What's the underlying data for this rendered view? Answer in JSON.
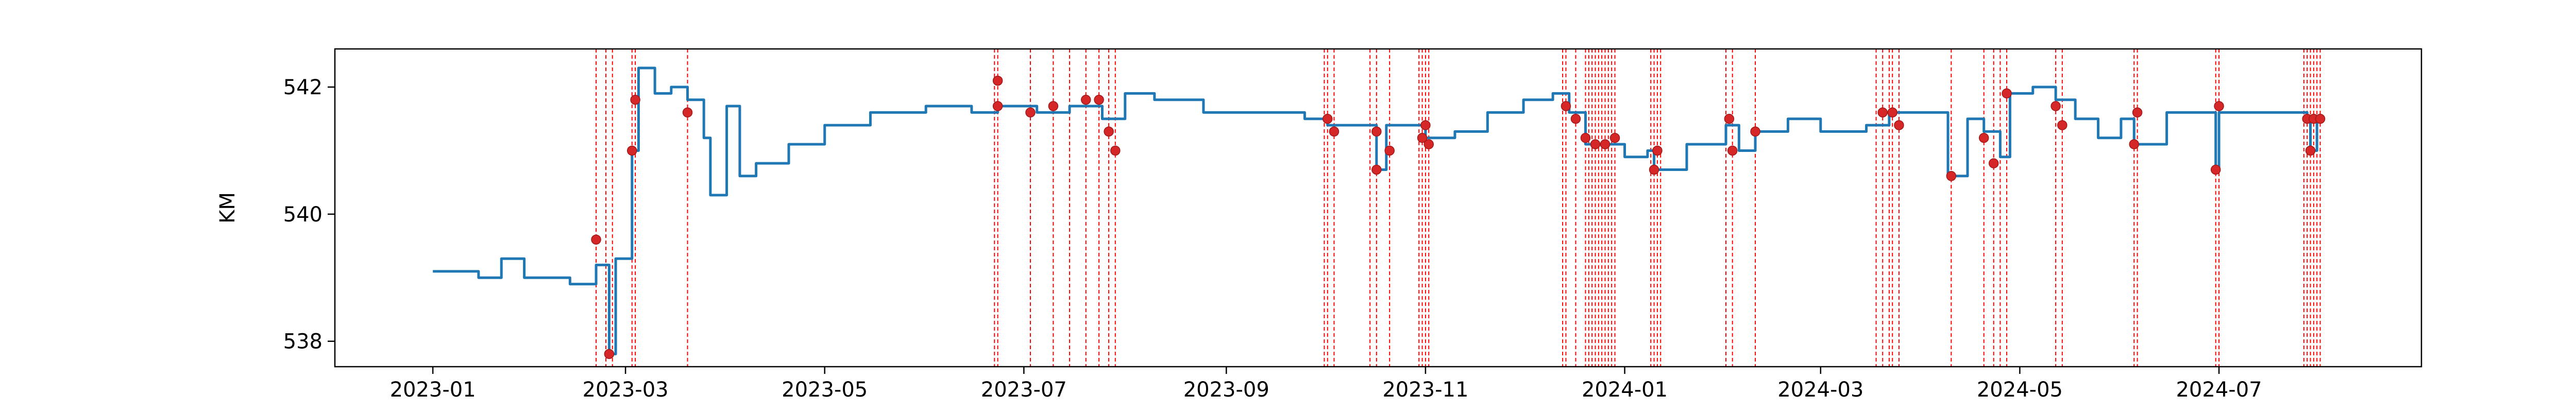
{
  "chart_data": {
    "type": "line",
    "title": "",
    "xlabel": "",
    "ylabel": "KM",
    "x_range": [
      "2022-12-02",
      "2024-09-01"
    ],
    "ylim": [
      537.6,
      542.6
    ],
    "x_ticks": [
      "2023-01",
      "2023-03",
      "2023-05",
      "2023-07",
      "2023-09",
      "2023-11",
      "2024-01",
      "2024-03",
      "2024-05",
      "2024-07"
    ],
    "y_ticks": [
      538,
      540,
      542
    ],
    "grid": false,
    "legend": "none",
    "colors": {
      "line": "#1f77b4",
      "marker": "#d62728",
      "vline": "#ff0000"
    },
    "series": [
      {
        "values": [
          [
            "2023-01-01",
            539.1
          ],
          [
            "2023-01-08",
            539.1
          ],
          [
            "2023-01-15",
            539.0
          ],
          [
            "2023-01-22",
            539.3
          ],
          [
            "2023-01-29",
            539.0
          ],
          [
            "2023-02-05",
            539.0
          ],
          [
            "2023-02-12",
            538.9
          ],
          [
            "2023-02-20",
            539.2
          ],
          [
            "2023-02-24",
            537.8
          ],
          [
            "2023-02-26",
            539.3
          ],
          [
            "2023-03-01",
            539.3
          ],
          [
            "2023-03-03",
            541.0
          ],
          [
            "2023-03-05",
            542.3
          ],
          [
            "2023-03-10",
            541.9
          ],
          [
            "2023-03-15",
            542.0
          ],
          [
            "2023-03-20",
            541.8
          ],
          [
            "2023-03-25",
            541.2
          ],
          [
            "2023-03-27",
            540.3
          ],
          [
            "2023-04-01",
            541.7
          ],
          [
            "2023-04-05",
            540.6
          ],
          [
            "2023-04-10",
            540.8
          ],
          [
            "2023-04-20",
            541.1
          ],
          [
            "2023-05-01",
            541.4
          ],
          [
            "2023-05-15",
            541.6
          ],
          [
            "2023-06-01",
            541.7
          ],
          [
            "2023-06-15",
            541.6
          ],
          [
            "2023-06-23",
            541.7
          ],
          [
            "2023-07-05",
            541.6
          ],
          [
            "2023-07-15",
            541.7
          ],
          [
            "2023-07-25",
            541.5
          ],
          [
            "2023-08-01",
            541.9
          ],
          [
            "2023-08-10",
            541.8
          ],
          [
            "2023-08-25",
            541.6
          ],
          [
            "2023-09-10",
            541.6
          ],
          [
            "2023-09-25",
            541.5
          ],
          [
            "2023-10-02",
            541.4
          ],
          [
            "2023-10-15",
            541.4
          ],
          [
            "2023-10-17",
            540.7
          ],
          [
            "2023-10-20",
            541.4
          ],
          [
            "2023-11-01",
            541.2
          ],
          [
            "2023-11-10",
            541.3
          ],
          [
            "2023-11-20",
            541.6
          ],
          [
            "2023-12-01",
            541.8
          ],
          [
            "2023-12-10",
            541.9
          ],
          [
            "2023-12-15",
            541.6
          ],
          [
            "2023-12-20",
            541.1
          ],
          [
            "2023-12-27",
            541.1
          ],
          [
            "2024-01-01",
            540.9
          ],
          [
            "2024-01-08",
            541.0
          ],
          [
            "2024-01-10",
            540.7
          ],
          [
            "2024-01-20",
            541.1
          ],
          [
            "2024-02-01",
            541.4
          ],
          [
            "2024-02-05",
            541.0
          ],
          [
            "2024-02-10",
            541.3
          ],
          [
            "2024-02-20",
            541.5
          ],
          [
            "2024-03-01",
            541.3
          ],
          [
            "2024-03-15",
            541.4
          ],
          [
            "2024-03-22",
            541.6
          ],
          [
            "2024-04-01",
            541.6
          ],
          [
            "2024-04-09",
            540.6
          ],
          [
            "2024-04-15",
            541.5
          ],
          [
            "2024-04-20",
            541.3
          ],
          [
            "2024-04-25",
            540.9
          ],
          [
            "2024-04-28",
            541.9
          ],
          [
            "2024-05-05",
            542.0
          ],
          [
            "2024-05-12",
            541.8
          ],
          [
            "2024-05-18",
            541.5
          ],
          [
            "2024-05-25",
            541.2
          ],
          [
            "2024-06-01",
            541.5
          ],
          [
            "2024-06-05",
            541.1
          ],
          [
            "2024-06-15",
            541.6
          ],
          [
            "2024-06-25",
            541.6
          ],
          [
            "2024-06-30",
            540.7
          ],
          [
            "2024-07-01",
            541.6
          ],
          [
            "2024-07-15",
            541.6
          ],
          [
            "2024-07-28",
            541.5
          ],
          [
            "2024-07-29",
            541.0
          ],
          [
            "2024-07-31",
            541.5
          ]
        ]
      }
    ],
    "markers": [
      [
        "2023-02-20",
        539.6
      ],
      [
        "2023-02-24",
        537.8
      ],
      [
        "2023-03-03",
        541.0
      ],
      [
        "2023-03-04",
        541.8
      ],
      [
        "2023-03-20",
        541.6
      ],
      [
        "2023-06-23",
        542.1
      ],
      [
        "2023-06-23",
        541.7
      ],
      [
        "2023-07-03",
        541.6
      ],
      [
        "2023-07-10",
        541.7
      ],
      [
        "2023-07-20",
        541.8
      ],
      [
        "2023-07-24",
        541.8
      ],
      [
        "2023-07-27",
        541.3
      ],
      [
        "2023-07-29",
        541.0
      ],
      [
        "2023-10-02",
        541.5
      ],
      [
        "2023-10-04",
        541.3
      ],
      [
        "2023-10-17",
        541.3
      ],
      [
        "2023-10-17",
        540.7
      ],
      [
        "2023-10-21",
        541.0
      ],
      [
        "2023-10-31",
        541.2
      ],
      [
        "2023-11-01",
        541.4
      ],
      [
        "2023-11-02",
        541.1
      ],
      [
        "2023-12-14",
        541.7
      ],
      [
        "2023-12-17",
        541.5
      ],
      [
        "2023-12-20",
        541.2
      ],
      [
        "2023-12-23",
        541.1
      ],
      [
        "2023-12-26",
        541.1
      ],
      [
        "2023-12-29",
        541.2
      ],
      [
        "2024-01-10",
        540.7
      ],
      [
        "2024-01-11",
        541.0
      ],
      [
        "2024-02-02",
        541.5
      ],
      [
        "2024-02-03",
        541.0
      ],
      [
        "2024-02-10",
        541.3
      ],
      [
        "2024-03-20",
        541.6
      ],
      [
        "2024-03-23",
        541.6
      ],
      [
        "2024-03-25",
        541.4
      ],
      [
        "2024-04-10",
        540.6
      ],
      [
        "2024-04-20",
        541.2
      ],
      [
        "2024-04-23",
        540.8
      ],
      [
        "2024-04-27",
        541.9
      ],
      [
        "2024-05-12",
        541.7
      ],
      [
        "2024-05-14",
        541.4
      ],
      [
        "2024-06-05",
        541.1
      ],
      [
        "2024-06-06",
        541.6
      ],
      [
        "2024-06-30",
        540.7
      ],
      [
        "2024-07-01",
        541.7
      ],
      [
        "2024-07-28",
        541.5
      ],
      [
        "2024-07-29",
        541.0
      ],
      [
        "2024-07-30",
        541.5
      ],
      [
        "2024-08-01",
        541.5
      ]
    ],
    "vlines": [
      "2023-02-20",
      "2023-02-23",
      "2023-02-25",
      "2023-03-03",
      "2023-03-04",
      "2023-03-20",
      "2023-06-22",
      "2023-06-23",
      "2023-07-03",
      "2023-07-10",
      "2023-07-15",
      "2023-07-20",
      "2023-07-24",
      "2023-07-27",
      "2023-07-29",
      "2023-10-01",
      "2023-10-02",
      "2023-10-04",
      "2023-10-15",
      "2023-10-17",
      "2023-10-21",
      "2023-10-30",
      "2023-10-31",
      "2023-11-01",
      "2023-11-02",
      "2023-12-13",
      "2023-12-14",
      "2023-12-17",
      "2023-12-20",
      "2023-12-21",
      "2023-12-22",
      "2023-12-23",
      "2023-12-24",
      "2023-12-25",
      "2023-12-26",
      "2023-12-27",
      "2023-12-28",
      "2023-12-29",
      "2024-01-09",
      "2024-01-10",
      "2024-01-11",
      "2024-01-12",
      "2024-02-01",
      "2024-02-03",
      "2024-02-10",
      "2024-03-18",
      "2024-03-20",
      "2024-03-22",
      "2024-03-23",
      "2024-03-25",
      "2024-04-10",
      "2024-04-20",
      "2024-04-23",
      "2024-04-25",
      "2024-04-27",
      "2024-05-12",
      "2024-05-14",
      "2024-06-05",
      "2024-06-06",
      "2024-06-30",
      "2024-07-01",
      "2024-07-27",
      "2024-07-28",
      "2024-07-29",
      "2024-07-30",
      "2024-07-31",
      "2024-08-01"
    ]
  }
}
